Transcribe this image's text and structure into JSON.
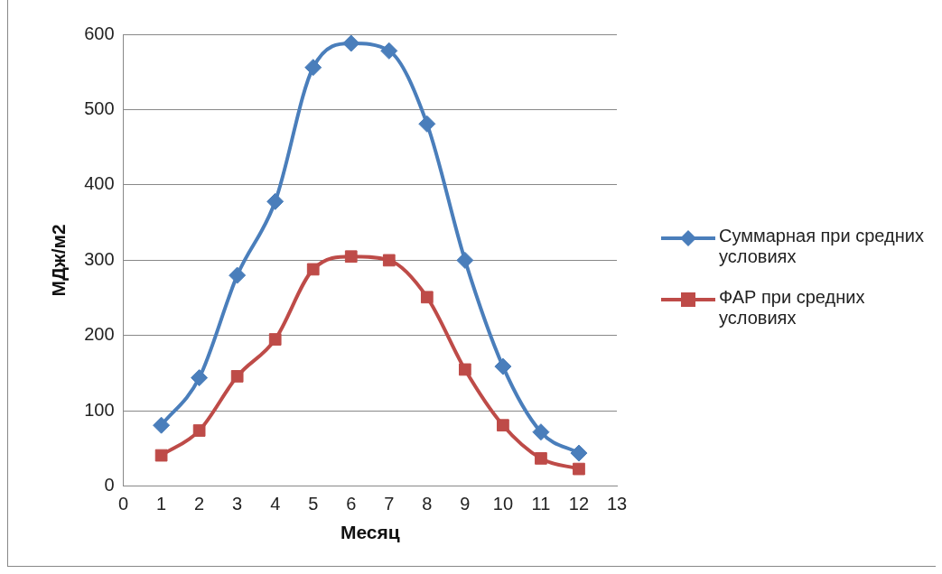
{
  "chart_data": {
    "type": "line",
    "xlabel": "Месяц",
    "ylabel": "МДж/м2",
    "x": [
      1,
      2,
      3,
      4,
      5,
      6,
      7,
      8,
      9,
      10,
      11,
      12
    ],
    "series": [
      {
        "name": "Суммарная при средних условиях",
        "color": "#4a7ebb",
        "marker": "diamond",
        "values": [
          81,
          144,
          280,
          378,
          556,
          588,
          578,
          481,
          300,
          159,
          72,
          44
        ]
      },
      {
        "name": "ФАР при средних условиях",
        "color": "#be4b48",
        "marker": "square",
        "values": [
          41,
          74,
          146,
          195,
          288,
          305,
          300,
          251,
          155,
          81,
          37,
          23
        ]
      }
    ],
    "xlim": [
      0,
      13
    ],
    "xticks": [
      0,
      1,
      2,
      3,
      4,
      5,
      6,
      7,
      8,
      9,
      10,
      11,
      12,
      13
    ],
    "ylim": [
      0,
      600
    ],
    "yticks": [
      0,
      100,
      200,
      300,
      400,
      500,
      600
    ],
    "grid": "y",
    "legend": "right",
    "line_style": "solid"
  }
}
